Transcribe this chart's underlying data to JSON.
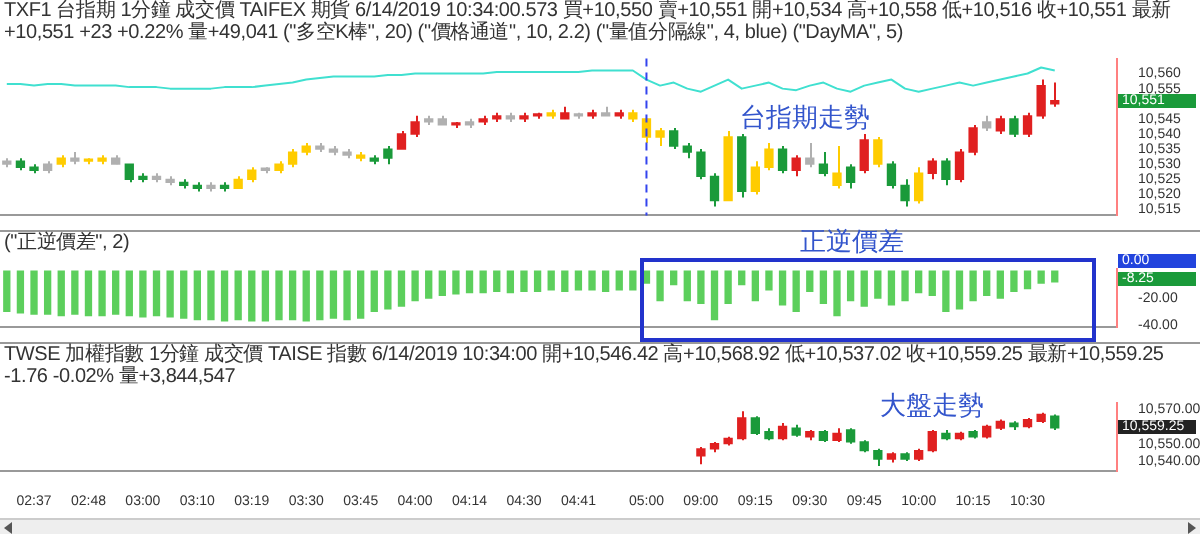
{
  "chart_data": [
    {
      "type": "candlestick",
      "title": "TXF1 台指期 1分鐘 成交價 TAIFEX 期貨 6/14/2019 10:34:00.573 買+10,550 賣+10,551 開+10,534 高+10,558 低+10,516 收+10,551 最新+10,551 +23 +0.22% 量+49,041 (\"多空K棒\", 20) (\"價格通道\", 10, 2.2) (\"量值分隔線\", 4, blue) (\"DayMA\", 5)",
      "categories": [
        null,
        null,
        "02:37",
        null,
        null,
        null,
        "02:48",
        null,
        null,
        null,
        "03:00",
        null,
        null,
        null,
        "03:10",
        null,
        null,
        null,
        "03:19",
        null,
        null,
        null,
        "03:30",
        null,
        null,
        null,
        "03:45",
        null,
        null,
        null,
        "04:00",
        null,
        null,
        null,
        "04:14",
        null,
        null,
        null,
        "04:30",
        null,
        null,
        null,
        "04:41",
        null,
        null,
        null,
        null,
        "05:00",
        null,
        null,
        null,
        "09:00",
        null,
        null,
        null,
        "09:15",
        null,
        null,
        null,
        "09:30",
        null,
        null,
        null,
        "09:45",
        null,
        null,
        null,
        "10:00",
        null,
        null,
        null,
        "10:15",
        null,
        null,
        null,
        "10:30",
        null,
        null,
        null,
        null,
        null,
        null
      ],
      "ohlc": [
        [
          10530,
          10532,
          10529,
          10531
        ],
        [
          10531,
          10532,
          10528,
          10529
        ],
        [
          10529,
          10530,
          10527,
          10528
        ],
        [
          10528,
          10531,
          10527,
          10530
        ],
        [
          10530,
          10533,
          10529,
          10532
        ],
        [
          10532,
          10534,
          10530,
          10531
        ],
        [
          10531,
          10532,
          10530,
          10531
        ],
        [
          10531,
          10533,
          10530,
          10532
        ],
        [
          10532,
          10533,
          10530,
          10530
        ],
        [
          10530,
          10530,
          10524,
          10525
        ],
        [
          10526,
          10527,
          10524,
          10525
        ],
        [
          10526,
          10527,
          10524,
          10525
        ],
        [
          10525,
          10526,
          10523,
          10524
        ],
        [
          10524,
          10525,
          10522,
          10523
        ],
        [
          10523,
          10524,
          10521,
          10522
        ],
        [
          10522,
          10524,
          10521,
          10523
        ],
        [
          10523,
          10524,
          10521,
          10522
        ],
        [
          10522,
          10526,
          10522,
          10525
        ],
        [
          10525,
          10529,
          10524,
          10528
        ],
        [
          10528,
          10529,
          10527,
          10528
        ],
        [
          10528,
          10531,
          10527,
          10530
        ],
        [
          10530,
          10535,
          10529,
          10534
        ],
        [
          10534,
          10537,
          10533,
          10536
        ],
        [
          10536,
          10537,
          10534,
          10535
        ],
        [
          10535,
          10536,
          10533,
          10534
        ],
        [
          10534,
          10535,
          10532,
          10533
        ],
        [
          10533,
          10534,
          10531,
          10532
        ],
        [
          10532,
          10533,
          10530,
          10531
        ],
        [
          10535,
          10536,
          10530,
          10532
        ],
        [
          10535,
          10541,
          10535,
          10540
        ],
        [
          10540,
          10546,
          10539,
          10544
        ],
        [
          10544,
          10546,
          10543,
          10545
        ],
        [
          10545,
          10546,
          10543,
          10543
        ],
        [
          10543,
          10544,
          10542,
          10543
        ],
        [
          10543,
          10545,
          10542,
          10544
        ],
        [
          10544,
          10546,
          10543,
          10545
        ],
        [
          10545,
          10547,
          10544,
          10546
        ],
        [
          10546,
          10547,
          10544,
          10545
        ],
        [
          10545,
          10547,
          10544,
          10546
        ],
        [
          10546,
          10547,
          10545,
          10546
        ],
        [
          10546,
          10548,
          10545,
          10547
        ],
        [
          10545,
          10549,
          10545,
          10547
        ],
        [
          10546,
          10547,
          10545,
          10546
        ],
        [
          10546,
          10548,
          10545,
          10547
        ],
        [
          10547,
          10549,
          10546,
          10546
        ],
        [
          10546,
          10548,
          10545,
          10547
        ],
        [
          10547,
          10548,
          10544,
          10545
        ],
        [
          10545,
          10545,
          10537,
          10539
        ],
        [
          10539,
          10542,
          10536,
          10541
        ],
        [
          10541,
          10542,
          10535,
          10536
        ],
        [
          10536,
          10537,
          10532,
          10534
        ],
        [
          10534,
          10535,
          10525,
          10526
        ],
        [
          10526,
          10527,
          10516,
          10518
        ],
        [
          10518,
          10541,
          10518,
          10539
        ],
        [
          10539,
          10540,
          10519,
          10521
        ],
        [
          10521,
          10531,
          10520,
          10529
        ],
        [
          10529,
          10537,
          10528,
          10535
        ],
        [
          10535,
          10536,
          10527,
          10528
        ],
        [
          10528,
          10533,
          10526,
          10532
        ],
        [
          10532,
          10537,
          10529,
          10530
        ],
        [
          10530,
          10534,
          10526,
          10527
        ],
        [
          10527,
          10536,
          10522,
          10523
        ],
        [
          10529,
          10530,
          10522,
          10524
        ],
        [
          10528,
          10540,
          10527,
          10538
        ],
        [
          10538,
          10539,
          10529,
          10530
        ],
        [
          10530,
          10531,
          10522,
          10523
        ],
        [
          10523,
          10525,
          10516,
          10518
        ],
        [
          10518,
          10529,
          10517,
          10527
        ],
        [
          10527,
          10532,
          10525,
          10531
        ],
        [
          10531,
          10532,
          10523,
          10525
        ],
        [
          10525,
          10535,
          10524,
          10534
        ],
        [
          10534,
          10543,
          10533,
          10542
        ],
        [
          10542,
          10546,
          10541,
          10544
        ],
        [
          10541,
          10546,
          10540,
          10545
        ],
        [
          10545,
          10546,
          10539,
          10540
        ],
        [
          10540,
          10547,
          10539,
          10546
        ],
        [
          10546,
          10558,
          10545,
          10556
        ],
        [
          10550,
          10557,
          10549,
          10551
        ],
        null,
        null,
        null,
        null
      ],
      "colors": [
        "#b0b0b0",
        "#1a9a3a",
        "#1a9a3a",
        "#b0b0b0",
        "#ffcc00",
        "#b0b0b0",
        "#ffcc00",
        "#ffcc00",
        "#b0b0b0",
        "#1a9a3a",
        "#1a9a3a",
        "#b0b0b0",
        "#b0b0b0",
        "#1a9a3a",
        "#1a9a3a",
        "#b0b0b0",
        "#1a9a3a",
        "#ffcc00",
        "#ffcc00",
        "#b0b0b0",
        "#ffcc00",
        "#ffcc00",
        "#ffcc00",
        "#b0b0b0",
        "#b0b0b0",
        "#b0b0b0",
        "#ffcc00",
        "#1a9a3a",
        "#1a9a3a",
        "#e02020",
        "#e02020",
        "#b0b0b0",
        "#b0b0b0",
        "#e02020",
        "#b0b0b0",
        "#e02020",
        "#e02020",
        "#b0b0b0",
        "#e02020",
        "#e02020",
        "#ffcc00",
        "#e02020",
        "#b0b0b0",
        "#e02020",
        "#b0b0b0",
        "#e02020",
        "#ffcc00",
        "#ffcc00",
        "#ffcc00",
        "#1a9a3a",
        "#1a9a3a",
        "#1a9a3a",
        "#1a9a3a",
        "#ffcc00",
        "#1a9a3a",
        "#ffcc00",
        "#ffcc00",
        "#1a9a3a",
        "#e02020",
        "#b0b0b0",
        "#1a9a3a",
        "#ffcc00",
        "#1a9a3a",
        "#e02020",
        "#ffcc00",
        "#1a9a3a",
        "#1a9a3a",
        "#ffcc00",
        "#e02020",
        "#1a9a3a",
        "#e02020",
        "#e02020",
        "#b0b0b0",
        "#e02020",
        "#1a9a3a",
        "#e02020",
        "#e02020",
        "#e02020",
        null,
        null,
        null,
        null
      ],
      "series": [
        {
          "type": "line",
          "color": "#40e0d0",
          "values": [
            10556.5,
            10556.5,
            10556,
            10556.5,
            10556.5,
            10556,
            10556,
            10556,
            10556,
            10555.5,
            10555.5,
            10555.5,
            10555,
            10555,
            10555,
            10555,
            10555.5,
            10555.5,
            10555.5,
            10556,
            10556.5,
            10557,
            10558,
            10558.5,
            10559,
            10559,
            10559,
            10559,
            10559.5,
            10559.5,
            10560,
            10560,
            10560,
            10560,
            10560,
            10560,
            10560.5,
            10560.5,
            10560.5,
            10560.5,
            10560.5,
            10560.5,
            10560.5,
            10561,
            10561,
            10561,
            10561,
            10558,
            10556,
            10557,
            10555,
            10554,
            10556,
            10558,
            10555,
            10556,
            10557,
            10555,
            10554.5,
            10556,
            10557,
            10555,
            10554,
            10556,
            10557,
            10558,
            10555,
            10554,
            10555,
            10556,
            10557,
            10556,
            10557,
            10558,
            10559,
            10560,
            10562,
            10561,
            null,
            null,
            null,
            null
          ]
        }
      ],
      "ylim": [
        10513,
        10565
      ],
      "yticks": [
        {
          "value": 10515,
          "label": "10,515"
        },
        {
          "value": 10520,
          "label": "10,520"
        },
        {
          "value": 10525,
          "label": "10,525"
        },
        {
          "value": 10530,
          "label": "10,530"
        },
        {
          "value": 10535,
          "label": "10,535"
        },
        {
          "value": 10540,
          "label": "10,540"
        },
        {
          "value": 10545,
          "label": "10,545"
        },
        {
          "value": 10555,
          "label": "10,555"
        },
        {
          "value": 10560,
          "label": "10,560"
        }
      ],
      "tick_labels": "y",
      "ref_lines": [
        {
          "axis": "x",
          "value": "05:00",
          "color": "#3344ee",
          "line_style": "dashed"
        }
      ],
      "annotations": [
        "台指期走勢",
        "10,551"
      ]
    },
    {
      "type": "bar",
      "title": "(\"正逆價差\", 2)",
      "categories": [
        null,
        null,
        "02:37",
        null,
        null,
        null,
        "02:48",
        null,
        null,
        null,
        "03:00",
        null,
        null,
        null,
        "03:10",
        null,
        null,
        null,
        "03:19",
        null,
        null,
        null,
        "03:30",
        null,
        null,
        null,
        "03:45",
        null,
        null,
        null,
        "04:00",
        null,
        null,
        null,
        "04:14",
        null,
        null,
        null,
        "04:30",
        null,
        null,
        null,
        "04:41",
        null,
        null,
        null,
        null,
        "05:00",
        null,
        null,
        null,
        "09:00",
        null,
        null,
        null,
        "09:15",
        null,
        null,
        null,
        "09:30",
        null,
        null,
        null,
        "09:45",
        null,
        null,
        null,
        "10:00",
        null,
        null,
        null,
        "10:15",
        null,
        null,
        null,
        "10:30",
        null,
        null,
        null,
        null,
        null,
        null
      ],
      "color": "#5ccf5c",
      "values": [
        -30,
        -31,
        -32,
        -32,
        -33,
        -32,
        -33,
        -33,
        -32,
        -33,
        -34,
        -33,
        -34,
        -35,
        -36,
        -36,
        -37,
        -36,
        -37,
        -37,
        -36,
        -36,
        -37,
        -36,
        -35,
        -36,
        -35,
        -30,
        -28,
        -26,
        -22,
        -20,
        -18,
        -17,
        -16,
        -16,
        -15,
        -16,
        -15,
        -15,
        -14,
        -15,
        -14,
        -14,
        -15,
        -14,
        -14,
        -9,
        -22,
        -10,
        -22,
        -24,
        -36,
        -24,
        -10,
        -22,
        -14,
        -25,
        -30,
        -15,
        -24,
        -33,
        -22,
        -26,
        -20,
        -25,
        -22,
        -16,
        -18,
        -30,
        -28,
        -22,
        -18,
        -20,
        -15,
        -13,
        -9,
        -8,
        null,
        null,
        null,
        null
      ],
      "ylim": [
        -42,
        2
      ],
      "yticks": [
        {
          "value": -20,
          "label": "-20.00"
        },
        {
          "value": -40,
          "label": "-40.00"
        }
      ],
      "tick_labels": "y",
      "annotations": [
        "正逆價差",
        "0.00",
        "-8.25"
      ]
    },
    {
      "type": "candlestick",
      "title": "TWSE 加權指數 1分鐘 成交價 TAISE 指數 6/14/2019 10:34:00 開+10,546.42 高+10,568.92 低+10,537.02 收+10,559.25 最新+10,559.25 -1.76 -0.02% 量+3,844,547",
      "categories": [
        null,
        null,
        "02:37",
        null,
        null,
        null,
        "02:48",
        null,
        null,
        null,
        "03:00",
        null,
        null,
        null,
        "03:10",
        null,
        null,
        null,
        "03:19",
        null,
        null,
        null,
        "03:30",
        null,
        null,
        null,
        "03:45",
        null,
        null,
        null,
        "04:00",
        null,
        null,
        null,
        "04:14",
        null,
        null,
        null,
        "04:30",
        null,
        null,
        null,
        "04:41",
        null,
        null,
        null,
        null,
        "05:00",
        null,
        null,
        null,
        "09:00",
        null,
        null,
        null,
        "09:15",
        null,
        null,
        null,
        "09:30",
        null,
        null,
        null,
        "09:45",
        null,
        null,
        null,
        "10:00",
        null,
        null,
        null,
        "10:15",
        null,
        null,
        null,
        "10:30",
        null,
        null,
        null,
        null,
        null,
        null
      ],
      "ohlc": [
        null,
        null,
        null,
        null,
        null,
        null,
        null,
        null,
        null,
        null,
        null,
        null,
        null,
        null,
        null,
        null,
        null,
        null,
        null,
        null,
        null,
        null,
        null,
        null,
        null,
        null,
        null,
        null,
        null,
        null,
        null,
        null,
        null,
        null,
        null,
        null,
        null,
        null,
        null,
        null,
        null,
        null,
        null,
        null,
        null,
        null,
        null,
        null,
        null,
        null,
        null,
        [
          10543,
          10548,
          10538,
          10547
        ],
        [
          10547,
          10551,
          10545,
          10550
        ],
        [
          10550,
          10554,
          10549,
          10553
        ],
        [
          10553,
          10568.92,
          10552,
          10565
        ],
        [
          10565,
          10566,
          10555,
          10556
        ],
        [
          10557,
          10559,
          10552,
          10553
        ],
        [
          10553,
          10562,
          10552,
          10560
        ],
        [
          10559,
          10561,
          10554,
          10555
        ],
        [
          10554,
          10558,
          10552,
          10557
        ],
        [
          10557,
          10558,
          10551,
          10552
        ],
        [
          10552,
          10559,
          10551,
          10556
        ],
        [
          10558,
          10559,
          10550,
          10551
        ],
        [
          10551,
          10552,
          10545,
          10546
        ],
        [
          10546,
          10547,
          10537.02,
          10541
        ],
        [
          10541,
          10545,
          10539,
          10544
        ],
        [
          10544,
          10545,
          10540,
          10541
        ],
        [
          10541,
          10547,
          10540,
          10546
        ],
        [
          10546,
          10558,
          10545,
          10557
        ],
        [
          10556,
          10558,
          10552,
          10553
        ],
        [
          10553,
          10557,
          10552,
          10556
        ],
        [
          10557,
          10558,
          10553,
          10554
        ],
        [
          10554,
          10561,
          10553,
          10560
        ],
        [
          10559,
          10564,
          10558,
          10563
        ],
        [
          10562,
          10563,
          10558,
          10560
        ],
        [
          10560,
          10565,
          10559,
          10564
        ],
        [
          10563,
          10568,
          10562,
          10567
        ],
        [
          10566,
          10567,
          10558,
          10559.25
        ],
        null,
        null,
        null,
        null
      ],
      "colors": [
        null,
        null,
        null,
        null,
        null,
        null,
        null,
        null,
        null,
        null,
        null,
        null,
        null,
        null,
        null,
        null,
        null,
        null,
        null,
        null,
        null,
        null,
        null,
        null,
        null,
        null,
        null,
        null,
        null,
        null,
        null,
        null,
        null,
        null,
        null,
        null,
        null,
        null,
        null,
        null,
        null,
        null,
        null,
        null,
        null,
        null,
        null,
        null,
        null,
        null,
        null,
        "#e02020",
        "#e02020",
        "#e02020",
        "#e02020",
        "#1a9a3a",
        "#1a9a3a",
        "#e02020",
        "#1a9a3a",
        "#e02020",
        "#1a9a3a",
        "#e02020",
        "#1a9a3a",
        "#1a9a3a",
        "#1a9a3a",
        "#e02020",
        "#1a9a3a",
        "#e02020",
        "#e02020",
        "#1a9a3a",
        "#e02020",
        "#1a9a3a",
        "#e02020",
        "#e02020",
        "#1a9a3a",
        "#e02020",
        "#e02020",
        "#1a9a3a",
        null,
        null,
        null,
        null
      ],
      "ylim": [
        10534,
        10574
      ],
      "yticks": [
        {
          "value": 10540,
          "label": "10,540.00"
        },
        {
          "value": 10550,
          "label": "10,550.00"
        },
        {
          "value": 10570,
          "label": "10,570.00"
        }
      ],
      "annotations": [
        "大盤走勢",
        "10,559.25"
      ]
    }
  ]
}
